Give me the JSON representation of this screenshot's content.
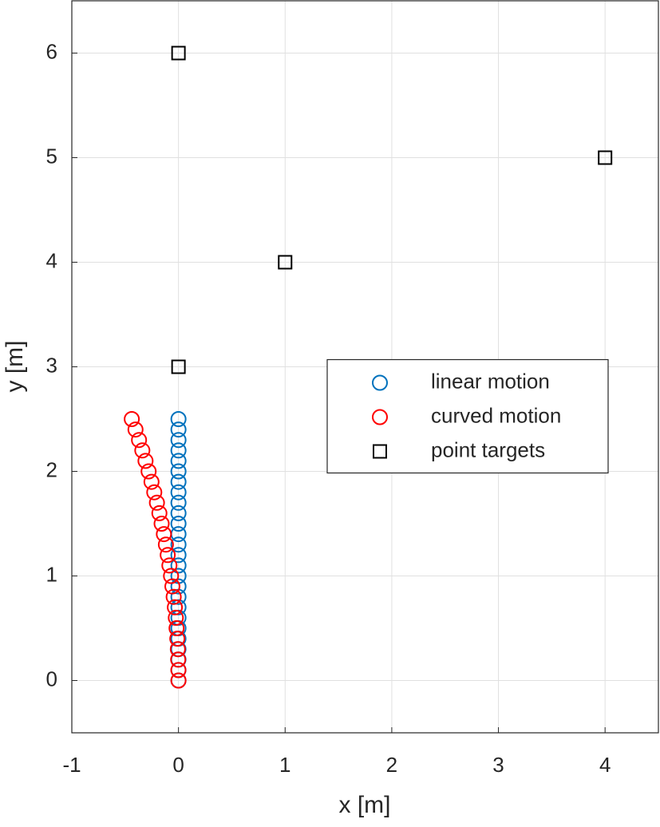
{
  "chart_data": {
    "type": "scatter",
    "xlabel": "x [m]",
    "ylabel": "y [m]",
    "xlim": [
      -1,
      4.5
    ],
    "ylim": [
      -0.5,
      6.5
    ],
    "xticks": [
      -1,
      0,
      1,
      2,
      3,
      4
    ],
    "yticks": [
      0,
      1,
      2,
      3,
      4,
      5,
      6
    ],
    "grid": true,
    "legend": "east",
    "series": [
      {
        "name": "linear motion",
        "color": "#0072bd",
        "marker": "circle",
        "x": [
          0,
          0,
          0,
          0,
          0,
          0,
          0,
          0,
          0,
          0,
          0,
          0,
          0,
          0,
          0,
          0,
          0,
          0,
          0,
          0,
          0,
          0,
          0,
          0,
          0,
          0
        ],
        "y": [
          0,
          0.1,
          0.2,
          0.3,
          0.4,
          0.5,
          0.6,
          0.7,
          0.8,
          0.9,
          1.0,
          1.1,
          1.2,
          1.3,
          1.4,
          1.5,
          1.6,
          1.7,
          1.8,
          1.9,
          2.0,
          2.1,
          2.2,
          2.3,
          2.4,
          2.5
        ]
      },
      {
        "name": "curved motion",
        "color": "#ff0000",
        "marker": "circle",
        "x": [
          0,
          -0.001,
          -0.003,
          -0.006,
          -0.011,
          -0.018,
          -0.025,
          -0.034,
          -0.045,
          -0.057,
          -0.07,
          -0.085,
          -0.101,
          -0.118,
          -0.137,
          -0.158,
          -0.179,
          -0.202,
          -0.227,
          -0.253,
          -0.28,
          -0.309,
          -0.339,
          -0.37,
          -0.403,
          -0.438
        ],
        "y": [
          0,
          0.1,
          0.2,
          0.3,
          0.4,
          0.5,
          0.6,
          0.7,
          0.8,
          0.9,
          1.0,
          1.1,
          1.2,
          1.3,
          1.4,
          1.5,
          1.6,
          1.7,
          1.8,
          1.9,
          2.0,
          2.1,
          2.2,
          2.3,
          2.4,
          2.5
        ]
      },
      {
        "name": "point targets",
        "color": "#000000",
        "marker": "square",
        "x": [
          0,
          1,
          4,
          0
        ],
        "y": [
          3,
          4,
          5,
          6
        ]
      }
    ]
  }
}
